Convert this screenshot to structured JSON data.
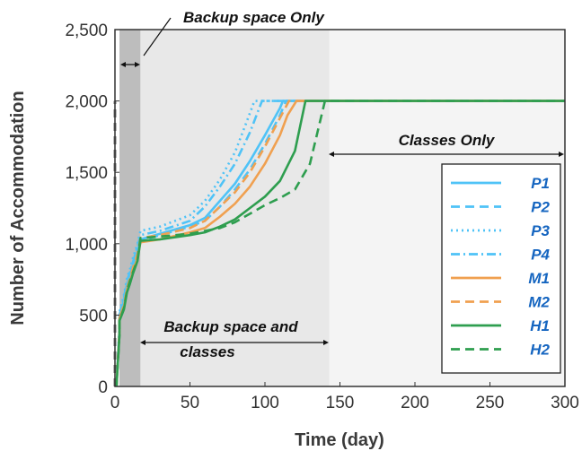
{
  "chart_data": {
    "type": "line",
    "xlabel": "Time (day)",
    "ylabel": "Number of Accommodation",
    "xlim": [
      0,
      300
    ],
    "ylim": [
      0,
      2500
    ],
    "xticks": [
      "0",
      "50",
      "100",
      "150",
      "200",
      "250",
      "300"
    ],
    "yticks": [
      "0",
      "500",
      "1,000",
      "1,500",
      "2,000",
      "2,500"
    ],
    "grid": false,
    "legend_position": "right",
    "regions": [
      {
        "label": "Backup space Only",
        "x_start": 3,
        "x_end": 17,
        "color": "#bdbdbd"
      },
      {
        "label": "Backup space and classes",
        "x_start": 17,
        "x_end": 143,
        "color": "#e8e8e8"
      },
      {
        "label": "Classes Only",
        "x_start": 143,
        "x_end": 300,
        "color": "#f4f4f4"
      }
    ],
    "demand_line": {
      "x": 0,
      "y_top": 2000,
      "color": "#777777",
      "style": "dashed"
    },
    "series": [
      {
        "name": "P1",
        "color": "#4fc3f7",
        "style": "solid",
        "x": [
          1,
          3,
          3,
          6,
          8,
          10,
          12,
          15,
          17,
          30,
          50,
          60,
          70,
          80,
          90,
          100,
          110,
          112,
          300
        ],
        "y": [
          0,
          400,
          500,
          600,
          720,
          780,
          850,
          950,
          1030,
          1070,
          1130,
          1180,
          1300,
          1420,
          1580,
          1760,
          1950,
          2000,
          2000
        ]
      },
      {
        "name": "P2",
        "color": "#4fc3f7",
        "style": "dashed",
        "x": [
          1,
          3,
          3,
          6,
          8,
          10,
          12,
          15,
          17,
          30,
          50,
          60,
          70,
          80,
          90,
          100,
          110,
          114,
          300
        ],
        "y": [
          0,
          380,
          480,
          580,
          700,
          760,
          830,
          930,
          1020,
          1060,
          1120,
          1160,
          1260,
          1380,
          1520,
          1700,
          1900,
          2000,
          2000
        ]
      },
      {
        "name": "P3",
        "color": "#4fc3f7",
        "style": "dotted",
        "x": [
          1,
          3,
          3,
          6,
          8,
          10,
          12,
          15,
          17,
          30,
          50,
          60,
          70,
          80,
          88,
          93,
          300
        ],
        "y": [
          0,
          420,
          520,
          640,
          760,
          820,
          900,
          1000,
          1090,
          1120,
          1200,
          1300,
          1450,
          1640,
          1860,
          2000,
          2000
        ]
      },
      {
        "name": "P4",
        "color": "#4fc3f7",
        "style": "dashdot",
        "x": [
          1,
          3,
          3,
          6,
          8,
          10,
          12,
          15,
          17,
          30,
          50,
          60,
          70,
          80,
          90,
          98,
          300
        ],
        "y": [
          0,
          400,
          500,
          620,
          740,
          800,
          870,
          980,
          1060,
          1090,
          1160,
          1260,
          1400,
          1560,
          1780,
          2000,
          2000
        ]
      },
      {
        "name": "M1",
        "color": "#f0a050",
        "style": "solid",
        "x": [
          1,
          3,
          3,
          6,
          8,
          10,
          12,
          15,
          17,
          30,
          50,
          60,
          70,
          80,
          90,
          100,
          110,
          115,
          121,
          300
        ],
        "y": [
          0,
          380,
          480,
          560,
          680,
          740,
          810,
          900,
          1010,
          1030,
          1080,
          1110,
          1190,
          1280,
          1400,
          1560,
          1760,
          1900,
          2000,
          2000
        ]
      },
      {
        "name": "M2",
        "color": "#f0a050",
        "style": "dashed",
        "x": [
          1,
          3,
          3,
          6,
          8,
          10,
          12,
          15,
          17,
          30,
          50,
          60,
          70,
          80,
          90,
          100,
          110,
          116,
          300
        ],
        "y": [
          0,
          380,
          480,
          570,
          690,
          760,
          830,
          930,
          1040,
          1060,
          1110,
          1160,
          1260,
          1360,
          1500,
          1680,
          1880,
          2000,
          2000
        ]
      },
      {
        "name": "H1",
        "color": "#2e9e4f",
        "style": "solid",
        "x": [
          1,
          3,
          3,
          6,
          8,
          10,
          12,
          15,
          17,
          30,
          50,
          60,
          70,
          80,
          90,
          100,
          110,
          120,
          127,
          300
        ],
        "y": [
          0,
          360,
          460,
          540,
          660,
          720,
          790,
          880,
          1020,
          1030,
          1060,
          1080,
          1120,
          1170,
          1250,
          1330,
          1440,
          1650,
          2000,
          2000
        ]
      },
      {
        "name": "H2",
        "color": "#2e9e4f",
        "style": "dashed",
        "x": [
          1,
          3,
          3,
          6,
          8,
          10,
          12,
          15,
          17,
          30,
          50,
          60,
          70,
          80,
          90,
          100,
          110,
          120,
          130,
          140,
          300
        ],
        "y": [
          0,
          360,
          460,
          550,
          670,
          740,
          800,
          890,
          1040,
          1050,
          1070,
          1090,
          1110,
          1150,
          1210,
          1270,
          1320,
          1380,
          1560,
          2000,
          2000
        ]
      }
    ],
    "annotations": {
      "backup_only": "Backup space Only",
      "backup_classes_line1": "Backup space and",
      "backup_classes_line2": "classes",
      "classes_only": "Classes Only"
    }
  }
}
